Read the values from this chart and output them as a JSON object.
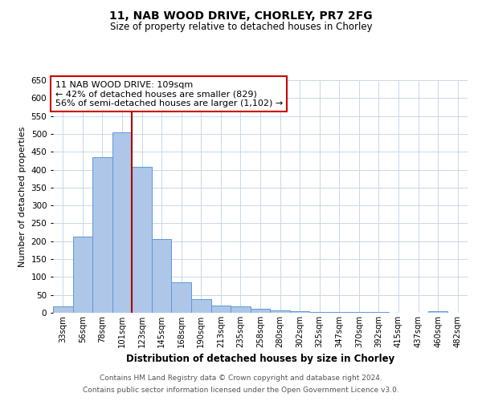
{
  "title": "11, NAB WOOD DRIVE, CHORLEY, PR7 2FG",
  "subtitle": "Size of property relative to detached houses in Chorley",
  "xlabel": "Distribution of detached houses by size in Chorley",
  "ylabel": "Number of detached properties",
  "footnote1": "Contains HM Land Registry data © Crown copyright and database right 2024.",
  "footnote2": "Contains public sector information licensed under the Open Government Licence v3.0.",
  "annotation_line1": "11 NAB WOOD DRIVE: 109sqm",
  "annotation_line2": "← 42% of detached houses are smaller (829)",
  "annotation_line3": "56% of semi-detached houses are larger (1,102) →",
  "bar_labels": [
    "33sqm",
    "56sqm",
    "78sqm",
    "101sqm",
    "123sqm",
    "145sqm",
    "168sqm",
    "190sqm",
    "213sqm",
    "235sqm",
    "258sqm",
    "280sqm",
    "302sqm",
    "325sqm",
    "347sqm",
    "370sqm",
    "392sqm",
    "415sqm",
    "437sqm",
    "460sqm",
    "482sqm"
  ],
  "bar_values": [
    17,
    212,
    435,
    505,
    407,
    207,
    86,
    38,
    20,
    18,
    12,
    6,
    5,
    3,
    2,
    2,
    2,
    0,
    0,
    5,
    0
  ],
  "bar_color": "#aec6e8",
  "bar_edge_color": "#5b9bd5",
  "vline_x": 3.5,
  "vline_color": "#aa0000",
  "annotation_box_color": "#cc0000",
  "ylim": [
    0,
    650
  ],
  "yticks": [
    0,
    50,
    100,
    150,
    200,
    250,
    300,
    350,
    400,
    450,
    500,
    550,
    600,
    650
  ],
  "background_color": "#ffffff",
  "grid_color": "#c8d8e8",
  "title_fontsize": 10,
  "subtitle_fontsize": 8.5,
  "xlabel_fontsize": 8.5,
  "ylabel_fontsize": 8,
  "footnote_fontsize": 6.5,
  "annotation_fontsize": 8
}
